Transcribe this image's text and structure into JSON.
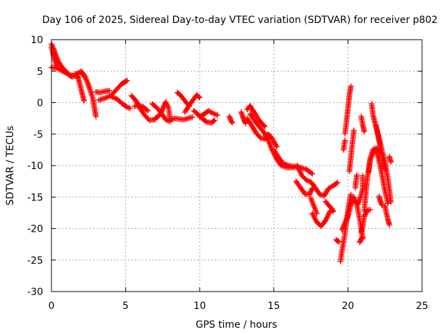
{
  "chart_data": {
    "type": "scatter",
    "title": "Day 106 of 2025, Sidereal Day-to-day VTEC variation (SDTVAR) for receiver p802",
    "xlabel": "GPS time / hours",
    "ylabel": "SDTVAR / TECUs",
    "xlim": [
      0,
      25
    ],
    "ylim": [
      -30,
      10
    ],
    "xticks": [
      0,
      5,
      10,
      15,
      20,
      25
    ],
    "yticks": [
      10,
      5,
      0,
      -5,
      -10,
      -15,
      -20,
      -25,
      -30
    ],
    "xtick_labels": [
      "0",
      "5",
      "10",
      "15",
      "20",
      "25"
    ],
    "ytick_labels": [
      "10",
      "5",
      "0",
      "-5",
      "-10",
      "-15",
      "-20",
      "-25",
      "-30"
    ],
    "grid": true,
    "marker": "plus",
    "marker_color": "#ff0000",
    "series": [
      {
        "name": "SDTVAR",
        "segments": [
          [
            [
              0.0,
              9.3
            ],
            [
              0.15,
              8.6
            ],
            [
              0.3,
              7.5
            ],
            [
              0.45,
              6.6
            ],
            [
              0.6,
              6.0
            ],
            [
              0.8,
              5.4
            ],
            [
              1.0,
              4.9
            ],
            [
              1.2,
              4.4
            ],
            [
              1.4,
              4.1
            ],
            [
              1.6,
              4.3
            ],
            [
              1.8,
              4.7
            ],
            [
              2.0,
              4.9
            ],
            [
              2.1,
              4.4
            ]
          ],
          [
            [
              0.0,
              8.8
            ],
            [
              0.1,
              7.8
            ],
            [
              0.2,
              6.9
            ],
            [
              0.3,
              6.2
            ],
            [
              0.4,
              5.6
            ]
          ],
          [
            [
              0.0,
              5.6
            ],
            [
              0.3,
              5.5
            ],
            [
              0.6,
              5.2
            ],
            [
              0.9,
              4.8
            ],
            [
              1.2,
              4.4
            ],
            [
              1.5,
              4.3
            ],
            [
              1.8,
              4.1
            ]
          ],
          [
            [
              1.6,
              4.6
            ],
            [
              1.8,
              4.0
            ],
            [
              1.9,
              3.1
            ],
            [
              2.0,
              2.1
            ],
            [
              2.1,
              1.2
            ],
            [
              2.2,
              0.3
            ]
          ],
          [
            [
              2.0,
              5.0
            ],
            [
              2.2,
              4.4
            ],
            [
              2.4,
              3.4
            ],
            [
              2.6,
              2.1
            ],
            [
              2.8,
              0.6
            ],
            [
              2.9,
              -0.8
            ],
            [
              3.0,
              -2.2
            ]
          ],
          [
            [
              3.0,
              1.7
            ],
            [
              3.3,
              1.6
            ],
            [
              3.6,
              1.8
            ],
            [
              3.9,
              1.9
            ]
          ],
          [
            [
              3.2,
              0.4
            ],
            [
              3.6,
              0.7
            ],
            [
              4.0,
              1.1
            ],
            [
              4.4,
              2.1
            ],
            [
              4.7,
              2.9
            ],
            [
              4.9,
              3.2
            ],
            [
              5.1,
              3.5
            ]
          ],
          [
            [
              4.0,
              1.0
            ],
            [
              4.4,
              0.6
            ],
            [
              4.8,
              -0.2
            ],
            [
              5.1,
              -0.7
            ],
            [
              5.3,
              -0.9
            ]
          ],
          [
            [
              5.4,
              1.1
            ],
            [
              5.6,
              0.6
            ],
            [
              5.8,
              -0.1
            ],
            [
              6.0,
              -1.0
            ],
            [
              6.3,
              -2.0
            ],
            [
              6.6,
              -2.8
            ],
            [
              7.0,
              -2.7
            ]
          ],
          [
            [
              5.6,
              -0.6
            ],
            [
              5.9,
              -0.4
            ],
            [
              6.2,
              -0.7
            ],
            [
              6.5,
              -1.3
            ]
          ],
          [
            [
              7.0,
              -2.5
            ],
            [
              7.3,
              -2.0
            ],
            [
              7.5,
              -1.0
            ],
            [
              7.7,
              0.1
            ],
            [
              7.9,
              -0.8
            ],
            [
              8.0,
              -2.7
            ]
          ],
          [
            [
              6.8,
              -0.2
            ],
            [
              7.1,
              -0.8
            ],
            [
              7.4,
              -1.6
            ],
            [
              7.7,
              -2.7
            ],
            [
              8.0,
              -3.0
            ]
          ],
          [
            [
              8.0,
              -2.8
            ],
            [
              8.3,
              -2.5
            ],
            [
              8.6,
              -2.6
            ],
            [
              8.9,
              -2.7
            ],
            [
              9.2,
              -2.5
            ],
            [
              9.5,
              -2.3
            ]
          ],
          [
            [
              8.5,
              1.6
            ],
            [
              8.7,
              1.2
            ],
            [
              8.9,
              0.6
            ],
            [
              9.1,
              0.0
            ],
            [
              9.3,
              -0.6
            ]
          ],
          [
            [
              9.0,
              -1.5
            ],
            [
              9.3,
              -0.4
            ],
            [
              9.6,
              0.6
            ],
            [
              9.8,
              1.2
            ],
            [
              10.0,
              0.8
            ]
          ],
          [
            [
              9.6,
              -1.3
            ],
            [
              9.9,
              -1.9
            ],
            [
              10.2,
              -2.6
            ],
            [
              10.5,
              -3.1
            ],
            [
              10.8,
              -3.2
            ],
            [
              11.0,
              -2.8
            ]
          ],
          [
            [
              10.0,
              -2.3
            ],
            [
              10.3,
              -1.8
            ],
            [
              10.6,
              -1.3
            ],
            [
              10.9,
              -1.7
            ],
            [
              11.2,
              -2.0
            ]
          ],
          [
            [
              12.0,
              -2.2
            ],
            [
              12.1,
              -2.8
            ],
            [
              12.2,
              -3.2
            ]
          ],
          [
            [
              12.8,
              -1.5
            ],
            [
              12.9,
              -2.2
            ],
            [
              13.0,
              -2.8
            ],
            [
              13.1,
              -3.3
            ]
          ],
          [
            [
              13.2,
              -1.1
            ],
            [
              13.4,
              -0.5
            ],
            [
              13.6,
              -1.3
            ],
            [
              13.8,
              -2.0
            ],
            [
              14.0,
              -2.8
            ],
            [
              14.2,
              -3.3
            ],
            [
              14.4,
              -3.8
            ]
          ],
          [
            [
              13.2,
              -2.5
            ],
            [
              13.5,
              -3.6
            ],
            [
              13.8,
              -4.8
            ],
            [
              14.1,
              -5.6
            ],
            [
              14.4,
              -5.8
            ],
            [
              14.6,
              -5.0
            ],
            [
              14.8,
              -5.4
            ],
            [
              15.0,
              -6.2
            ],
            [
              15.2,
              -7.0
            ]
          ],
          [
            [
              13.4,
              -1.8
            ],
            [
              13.7,
              -2.8
            ],
            [
              14.0,
              -3.8
            ],
            [
              14.3,
              -4.6
            ],
            [
              14.6,
              -5.8
            ],
            [
              14.9,
              -7.6
            ],
            [
              15.2,
              -9.0
            ],
            [
              15.5,
              -10.0
            ],
            [
              15.9,
              -10.3
            ],
            [
              16.3,
              -10.3
            ],
            [
              16.6,
              -10.0
            ]
          ],
          [
            [
              15.0,
              -7.5
            ],
            [
              15.3,
              -8.6
            ],
            [
              15.6,
              -9.6
            ],
            [
              16.0,
              -10.0
            ],
            [
              16.5,
              -10.2
            ],
            [
              16.8,
              -10.3
            ],
            [
              17.2,
              -10.6
            ],
            [
              17.6,
              -11.3
            ]
          ],
          [
            [
              16.5,
              -12.5
            ],
            [
              16.8,
              -13.5
            ],
            [
              17.1,
              -14.5
            ],
            [
              17.4,
              -14.6
            ],
            [
              17.6,
              -13.6
            ]
          ],
          [
            [
              16.6,
              -10.2
            ],
            [
              16.9,
              -11.6
            ],
            [
              17.2,
              -12.3
            ],
            [
              17.5,
              -12.6
            ],
            [
              17.8,
              -13.5
            ],
            [
              18.1,
              -14.6
            ],
            [
              18.4,
              -14.8
            ],
            [
              18.7,
              -13.6
            ],
            [
              19.0,
              -13.2
            ],
            [
              19.3,
              -12.7
            ]
          ],
          [
            [
              17.5,
              -15.2
            ],
            [
              17.7,
              -16.4
            ],
            [
              17.9,
              -17.6
            ]
          ],
          [
            [
              17.6,
              -17.6
            ],
            [
              17.9,
              -19.0
            ],
            [
              18.2,
              -19.6
            ],
            [
              18.5,
              -18.7
            ],
            [
              18.8,
              -17.2
            ]
          ],
          [
            [
              18.5,
              -15.7
            ],
            [
              18.7,
              -16.3
            ],
            [
              18.9,
              -16.8
            ],
            [
              19.0,
              -17.3
            ]
          ],
          [
            [
              19.2,
              -21.8
            ],
            [
              19.4,
              -22.1
            ]
          ],
          [
            [
              19.5,
              -25.2
            ],
            [
              19.6,
              -23.6
            ],
            [
              19.7,
              -22.3
            ],
            [
              19.8,
              -20.7
            ],
            [
              19.9,
              -18.9
            ],
            [
              20.0,
              -17.2
            ],
            [
              20.1,
              -15.8
            ],
            [
              20.2,
              -14.6
            ]
          ],
          [
            [
              19.6,
              -20.2
            ],
            [
              19.8,
              -19.1
            ],
            [
              20.0,
              -18.1
            ],
            [
              20.2,
              -16.3
            ],
            [
              20.4,
              -15.0
            ],
            [
              20.6,
              -16.2
            ],
            [
              20.8,
              -18.6
            ],
            [
              21.0,
              -21.6
            ]
          ],
          [
            [
              19.8,
              -4.9
            ],
            [
              19.9,
              -3.0
            ],
            [
              20.0,
              -1.0
            ],
            [
              20.1,
              1.2
            ],
            [
              20.2,
              2.6
            ]
          ],
          [
            [
              19.7,
              -7.5
            ],
            [
              19.8,
              -6.0
            ]
          ],
          [
            [
              20.1,
              -10.9
            ],
            [
              20.2,
              -8.8
            ],
            [
              20.3,
              -6.5
            ],
            [
              20.4,
              -4.4
            ]
          ],
          [
            [
              20.5,
              -13.5
            ],
            [
              20.6,
              -11.5
            ]
          ],
          [
            [
              20.7,
              -16.1
            ],
            [
              20.9,
              -14.6
            ],
            [
              21.0,
              -13.6
            ],
            [
              21.0,
              -11.6
            ]
          ],
          [
            [
              20.9,
              -20.6
            ],
            [
              21.0,
              -19.6
            ],
            [
              21.1,
              -18.1
            ],
            [
              21.3,
              -17.1
            ],
            [
              21.5,
              -17.0
            ]
          ],
          [
            [
              20.8,
              -22.2
            ],
            [
              20.9,
              -21.6
            ],
            [
              21.0,
              -21.3
            ]
          ],
          [
            [
              21.1,
              -17.2
            ],
            [
              21.3,
              -12.2
            ],
            [
              21.5,
              -9.1
            ],
            [
              21.7,
              -8.0
            ],
            [
              21.9,
              -7.5
            ],
            [
              22.1,
              -9.2
            ],
            [
              22.3,
              -11.5
            ],
            [
              22.5,
              -14.0
            ],
            [
              22.7,
              -16.0
            ]
          ],
          [
            [
              21.4,
              -11.0
            ],
            [
              21.5,
              -8.9
            ],
            [
              21.7,
              -7.4
            ],
            [
              22.0,
              -7.2
            ],
            [
              22.2,
              -8.0
            ]
          ],
          [
            [
              20.9,
              -2.2
            ],
            [
              21.0,
              -3.5
            ],
            [
              21.1,
              -4.6
            ]
          ],
          [
            [
              21.6,
              -0.2
            ],
            [
              21.7,
              -2.0
            ],
            [
              21.9,
              -3.9
            ],
            [
              22.1,
              -5.6
            ],
            [
              22.3,
              -7.6
            ],
            [
              22.5,
              -9.4
            ],
            [
              22.7,
              -12.2
            ],
            [
              22.9,
              -15.8
            ]
          ],
          [
            [
              21.9,
              -3.6
            ],
            [
              22.0,
              -4.8
            ],
            [
              22.1,
              -6.0
            ],
            [
              22.3,
              -8.4
            ],
            [
              22.5,
              -10.6
            ]
          ],
          [
            [
              22.5,
              -16.4
            ],
            [
              22.6,
              -17.6
            ],
            [
              22.7,
              -18.6
            ],
            [
              22.8,
              -19.4
            ]
          ],
          [
            [
              22.1,
              -14.9
            ],
            [
              22.2,
              -15.7
            ],
            [
              22.3,
              -16.3
            ]
          ],
          [
            [
              22.8,
              -8.6
            ],
            [
              22.9,
              -9.4
            ]
          ]
        ]
      }
    ]
  }
}
